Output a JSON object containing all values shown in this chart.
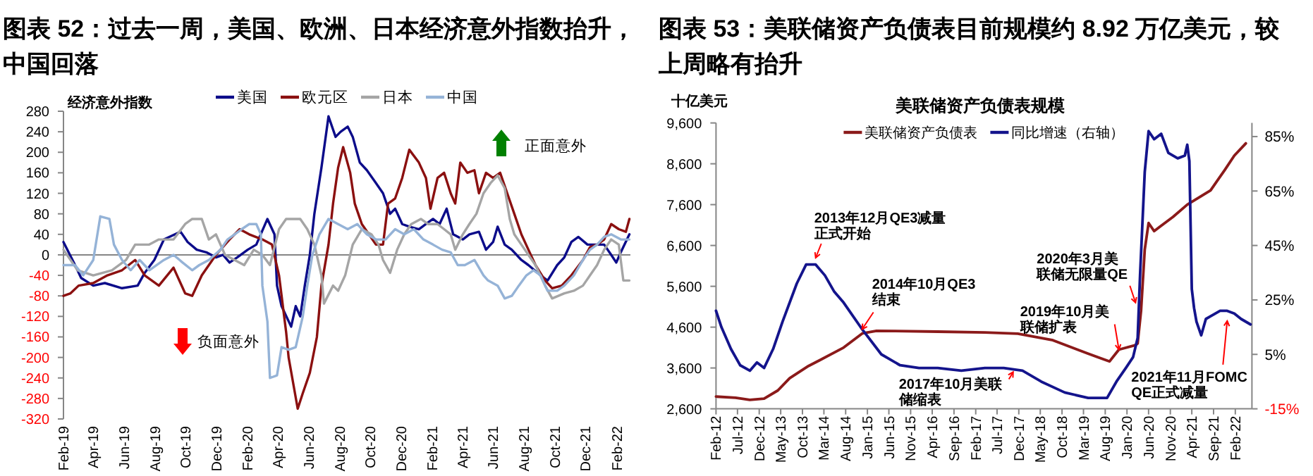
{
  "chart_data": [
    {
      "type": "line",
      "title": "图表 52：过去一周，美国、欧洲、日本经济意外指数抬升，中国回落",
      "ylabel": "经济意外指数",
      "legend": "top",
      "xlim": [
        "2019-02-01",
        "2022-02-28"
      ],
      "xticks": [
        {
          "value": "2019-02-01",
          "label": "Feb-19"
        },
        {
          "value": "2019-04-01",
          "label": "Apr-19"
        },
        {
          "value": "2019-06-01",
          "label": "Jun-19"
        },
        {
          "value": "2019-08-01",
          "label": "Aug-19"
        },
        {
          "value": "2019-10-01",
          "label": "Oct-19"
        },
        {
          "value": "2019-12-01",
          "label": "Dec-19"
        },
        {
          "value": "2020-02-01",
          "label": "Feb-20"
        },
        {
          "value": "2020-04-01",
          "label": "Apr-20"
        },
        {
          "value": "2020-06-01",
          "label": "Jun-20"
        },
        {
          "value": "2020-08-01",
          "label": "Aug-20"
        },
        {
          "value": "2020-10-01",
          "label": "Oct-20"
        },
        {
          "value": "2020-12-01",
          "label": "Dec-20"
        },
        {
          "value": "2021-02-01",
          "label": "Feb-21"
        },
        {
          "value": "2021-04-01",
          "label": "Apr-21"
        },
        {
          "value": "2021-06-01",
          "label": "Jun-21"
        },
        {
          "value": "2021-08-01",
          "label": "Aug-21"
        },
        {
          "value": "2021-10-01",
          "label": "Oct-21"
        },
        {
          "value": "2021-12-01",
          "label": "Dec-21"
        },
        {
          "value": "2022-02-01",
          "label": "Feb-22"
        }
      ],
      "ylim": [
        -320,
        280
      ],
      "yticks": [
        -320,
        -280,
        -240,
        -200,
        -160,
        -120,
        -80,
        -40,
        0,
        40,
        80,
        120,
        160,
        200,
        240,
        280
      ],
      "annotations": [
        "正面意外",
        "负面意外"
      ],
      "series": [
        {
          "name": "美国",
          "color": "#0c0c8a",
          "x": [
            "2019-02-01",
            "2019-02-24",
            "2019-03-08",
            "2019-04-01",
            "2019-04-24",
            "2019-05-28",
            "2019-06-28",
            "2019-07-12",
            "2019-07-31",
            "2019-08-19",
            "2019-09-21",
            "2019-10-05",
            "2019-10-23",
            "2019-11-11",
            "2019-11-30",
            "2019-12-14",
            "2019-12-27",
            "2020-01-11",
            "2020-02-01",
            "2020-02-18",
            "2020-03-11",
            "2020-03-25",
            "2020-03-30",
            "2020-04-08",
            "2020-04-27",
            "2020-05-06",
            "2020-05-15",
            "2020-05-24",
            "2020-06-03",
            "2020-06-12",
            "2020-06-26",
            "2020-07-10",
            "2020-07-24",
            "2020-08-03",
            "2020-08-17",
            "2020-08-27",
            "2020-09-10",
            "2020-09-24",
            "2020-10-12",
            "2020-10-26",
            "2020-11-09",
            "2020-11-19",
            "2020-12-03",
            "2020-12-17",
            "2021-01-05",
            "2021-01-19",
            "2021-02-02",
            "2021-02-15",
            "2021-03-01",
            "2021-03-14",
            "2021-04-02",
            "2021-04-15",
            "2021-05-04",
            "2021-05-18",
            "2021-06-01",
            "2021-06-10",
            "2021-06-24",
            "2021-07-08",
            "2021-07-27",
            "2021-08-10",
            "2021-09-03",
            "2021-09-17",
            "2021-10-06",
            "2021-10-20",
            "2021-11-03",
            "2021-11-17",
            "2021-12-05",
            "2021-12-24",
            "2022-01-07",
            "2022-01-21",
            "2022-01-31",
            "2022-02-09",
            "2022-02-26"
          ],
          "values": [
            25,
            -20,
            -45,
            -60,
            -55,
            -65,
            -60,
            -35,
            -10,
            30,
            45,
            25,
            10,
            5,
            -5,
            0,
            -15,
            -5,
            10,
            20,
            70,
            40,
            -60,
            -100,
            -140,
            -100,
            -120,
            -60,
            0,
            80,
            170,
            270,
            230,
            240,
            250,
            230,
            180,
            165,
            140,
            120,
            80,
            90,
            60,
            55,
            50,
            60,
            70,
            60,
            90,
            40,
            30,
            40,
            45,
            10,
            25,
            55,
            20,
            10,
            -10,
            -20,
            -40,
            -50,
            -20,
            -5,
            25,
            35,
            20,
            20,
            20,
            0,
            -15,
            5,
            40
          ]
        },
        {
          "name": "欧元区",
          "color": "#8b1010",
          "x": [
            "2019-02-01",
            "2019-02-15",
            "2019-03-03",
            "2019-04-01",
            "2019-04-29",
            "2019-05-28",
            "2019-06-23",
            "2019-07-12",
            "2019-08-09",
            "2019-09-07",
            "2019-09-30",
            "2019-10-14",
            "2019-11-02",
            "2019-11-30",
            "2019-12-27",
            "2020-01-16",
            "2020-02-04",
            "2020-03-01",
            "2020-03-20",
            "2020-04-03",
            "2020-04-17",
            "2020-04-22",
            "2020-05-10",
            "2020-05-20",
            "2020-06-03",
            "2020-06-17",
            "2020-06-26",
            "2020-07-10",
            "2020-07-19",
            "2020-07-29",
            "2020-08-08",
            "2020-08-22",
            "2020-08-31",
            "2020-09-14",
            "2020-09-28",
            "2020-10-12",
            "2020-10-26",
            "2020-11-05",
            "2020-11-19",
            "2020-12-03",
            "2020-12-17",
            "2021-01-05",
            "2021-01-19",
            "2021-01-28",
            "2021-02-11",
            "2021-02-24",
            "2021-03-09",
            "2021-03-18",
            "2021-03-28",
            "2021-04-11",
            "2021-04-25",
            "2021-05-04",
            "2021-05-18",
            "2021-06-01",
            "2021-06-15",
            "2021-06-29",
            "2021-07-13",
            "2021-07-27",
            "2021-08-10",
            "2021-08-24",
            "2021-09-12",
            "2021-09-26",
            "2021-10-15",
            "2021-11-03",
            "2021-11-26",
            "2021-12-10",
            "2021-12-24",
            "2022-01-07",
            "2022-01-21",
            "2022-02-05",
            "2022-02-19",
            "2022-02-26"
          ],
          "values": [
            -80,
            -75,
            -60,
            -55,
            -40,
            -30,
            -10,
            -40,
            -60,
            -25,
            -75,
            -80,
            -40,
            0,
            30,
            50,
            40,
            30,
            20,
            -40,
            -150,
            -200,
            -300,
            -270,
            -230,
            -160,
            -60,
            20,
            100,
            170,
            210,
            160,
            100,
            60,
            40,
            20,
            20,
            100,
            110,
            150,
            205,
            180,
            150,
            90,
            150,
            160,
            120,
            100,
            180,
            160,
            165,
            120,
            160,
            150,
            160,
            120,
            80,
            40,
            10,
            -20,
            -50,
            -65,
            -60,
            -40,
            -10,
            15,
            20,
            30,
            60,
            50,
            45,
            70
          ]
        },
        {
          "name": "日本",
          "color": "#a5a5a5",
          "x": [
            "2019-02-01",
            "2019-03-01",
            "2019-04-01",
            "2019-05-08",
            "2019-06-05",
            "2019-06-23",
            "2019-07-21",
            "2019-08-09",
            "2019-09-07",
            "2019-09-30",
            "2019-10-14",
            "2019-11-02",
            "2019-11-16",
            "2019-11-30",
            "2019-12-18",
            "2020-01-06",
            "2020-01-25",
            "2020-02-13",
            "2020-03-01",
            "2020-03-16",
            "2020-04-03",
            "2020-04-17",
            "2020-05-15",
            "2020-05-29",
            "2020-06-12",
            "2020-06-26",
            "2020-07-01",
            "2020-07-19",
            "2020-07-29",
            "2020-08-12",
            "2020-08-27",
            "2020-09-14",
            "2020-10-03",
            "2020-10-17",
            "2020-10-26",
            "2020-11-09",
            "2020-11-23",
            "2020-12-07",
            "2020-12-21",
            "2021-01-09",
            "2021-01-23",
            "2021-02-11",
            "2021-02-24",
            "2021-03-09",
            "2021-03-18",
            "2021-04-02",
            "2021-04-15",
            "2021-04-29",
            "2021-05-13",
            "2021-05-27",
            "2021-06-10",
            "2021-06-24",
            "2021-07-04",
            "2021-07-13",
            "2021-07-27",
            "2021-08-10",
            "2021-08-24",
            "2021-09-12",
            "2021-09-26",
            "2021-10-20",
            "2021-11-08",
            "2021-11-26",
            "2021-12-10",
            "2021-12-24",
            "2022-01-07",
            "2022-01-21",
            "2022-02-05",
            "2022-02-14",
            "2022-02-26"
          ],
          "values": [
            10,
            -30,
            -40,
            -30,
            -10,
            20,
            20,
            30,
            30,
            60,
            70,
            70,
            30,
            40,
            0,
            -10,
            -20,
            10,
            0,
            -20,
            50,
            70,
            70,
            50,
            20,
            -40,
            -95,
            -60,
            -70,
            -40,
            20,
            50,
            40,
            20,
            -10,
            -35,
            10,
            40,
            60,
            70,
            60,
            60,
            50,
            40,
            10,
            40,
            60,
            80,
            120,
            140,
            155,
            130,
            70,
            40,
            20,
            0,
            -20,
            -60,
            -85,
            -75,
            -70,
            -60,
            -40,
            -20,
            10,
            30,
            20,
            -50,
            -50
          ]
        },
        {
          "name": "中国",
          "color": "#95b3d7",
          "x": [
            "2019-02-01",
            "2019-02-24",
            "2019-03-12",
            "2019-04-01",
            "2019-04-15",
            "2019-05-03",
            "2019-05-12",
            "2019-05-28",
            "2019-06-14",
            "2019-07-02",
            "2019-07-21",
            "2019-08-19",
            "2019-09-07",
            "2019-09-25",
            "2019-10-14",
            "2019-10-28",
            "2019-11-16",
            "2019-12-09",
            "2019-12-23",
            "2020-01-06",
            "2020-01-20",
            "2020-02-04",
            "2020-02-18",
            "2020-02-27",
            "2020-03-01",
            "2020-03-11",
            "2020-03-16",
            "2020-03-30",
            "2020-04-08",
            "2020-04-22",
            "2020-05-06",
            "2020-05-20",
            "2020-05-29",
            "2020-06-08",
            "2020-06-22",
            "2020-07-10",
            "2020-07-29",
            "2020-08-17",
            "2020-09-05",
            "2020-09-24",
            "2020-10-12",
            "2020-10-31",
            "2020-11-19",
            "2020-12-07",
            "2020-12-26",
            "2021-01-14",
            "2021-02-02",
            "2021-02-20",
            "2021-03-09",
            "2021-03-23",
            "2021-04-06",
            "2021-04-25",
            "2021-05-13",
            "2021-05-22",
            "2021-06-10",
            "2021-06-24",
            "2021-07-08",
            "2021-07-22",
            "2021-08-06",
            "2021-08-20",
            "2021-09-03",
            "2021-09-17",
            "2021-10-06",
            "2021-10-20",
            "2021-11-08",
            "2021-11-26",
            "2021-12-10",
            "2021-12-24",
            "2022-01-07",
            "2022-01-21",
            "2022-02-09",
            "2022-02-26"
          ],
          "values": [
            -20,
            -20,
            -40,
            -10,
            75,
            70,
            20,
            -10,
            -30,
            -10,
            -30,
            -10,
            0,
            -15,
            -30,
            -20,
            -10,
            10,
            30,
            40,
            50,
            60,
            60,
            40,
            -60,
            -130,
            -240,
            -235,
            -180,
            -185,
            -180,
            -120,
            -60,
            0,
            40,
            70,
            60,
            50,
            60,
            40,
            30,
            30,
            50,
            40,
            50,
            30,
            20,
            10,
            5,
            -20,
            -20,
            -10,
            -40,
            -50,
            -60,
            -85,
            -80,
            -60,
            -40,
            -30,
            -40,
            -70,
            -70,
            -60,
            -40,
            -10,
            10,
            20,
            35,
            40,
            30,
            30
          ]
        }
      ]
    },
    {
      "type": "line",
      "title": "图表 53：美联储资产负债表目前规模约 8.92 万亿美元，较上周略有抬升",
      "subtitle": "美联储资产负债表规模",
      "ylabel": "十亿美元",
      "legend": "top",
      "xlim": [
        "2012-02-01",
        "2022-05-29"
      ],
      "xticks": [
        {
          "value": "2012-02-01",
          "label": "Feb-12"
        },
        {
          "value": "2012-07-01",
          "label": "Jul-12"
        },
        {
          "value": "2012-12-01",
          "label": "Dec-12"
        },
        {
          "value": "2013-05-01",
          "label": "May-13"
        },
        {
          "value": "2013-10-01",
          "label": "Oct-13"
        },
        {
          "value": "2014-03-01",
          "label": "Mar-14"
        },
        {
          "value": "2014-08-01",
          "label": "Aug-14"
        },
        {
          "value": "2015-01-01",
          "label": "Jan-15"
        },
        {
          "value": "2015-06-01",
          "label": "Jun-15"
        },
        {
          "value": "2015-11-01",
          "label": "Nov-15"
        },
        {
          "value": "2016-04-01",
          "label": "Apr-16"
        },
        {
          "value": "2016-09-01",
          "label": "Sep-16"
        },
        {
          "value": "2017-02-01",
          "label": "Feb-17"
        },
        {
          "value": "2017-07-01",
          "label": "Jul-17"
        },
        {
          "value": "2017-12-01",
          "label": "Dec-17"
        },
        {
          "value": "2018-05-01",
          "label": "May-18"
        },
        {
          "value": "2018-10-01",
          "label": "Oct-18"
        },
        {
          "value": "2019-03-01",
          "label": "Mar-19"
        },
        {
          "value": "2019-08-01",
          "label": "Aug-19"
        },
        {
          "value": "2020-01-01",
          "label": "Jan-20"
        },
        {
          "value": "2020-06-01",
          "label": "Jun-20"
        },
        {
          "value": "2020-11-01",
          "label": "Nov-20"
        },
        {
          "value": "2021-04-01",
          "label": "Apr-21"
        },
        {
          "value": "2021-09-01",
          "label": "Sep-21"
        },
        {
          "value": "2022-02-01",
          "label": "Feb-22"
        }
      ],
      "ylim": [
        2600,
        9600
      ],
      "yticks": [
        {
          "value": 2600,
          "label": "2,600"
        },
        {
          "value": 3600,
          "label": "3,600"
        },
        {
          "value": 4600,
          "label": "4,600"
        },
        {
          "value": 5600,
          "label": "5,600"
        },
        {
          "value": 6600,
          "label": "6,600"
        },
        {
          "value": 7600,
          "label": "7,600"
        },
        {
          "value": 8600,
          "label": "8,600"
        },
        {
          "value": 9600,
          "label": "9,600"
        }
      ],
      "y2lim": [
        -15,
        90
      ],
      "y2ticks": [
        {
          "value": -15,
          "label": "-15%"
        },
        {
          "value": 5,
          "label": "5%"
        },
        {
          "value": 25,
          "label": "25%"
        },
        {
          "value": 45,
          "label": "45%"
        },
        {
          "value": 65,
          "label": "65%"
        },
        {
          "value": 85,
          "label": "85%"
        }
      ],
      "annotations": [
        {
          "text": "2013年12月QE3减量正式开始",
          "x": "2014-01-02",
          "y": 6300
        },
        {
          "text": "2014年10月QE3结束",
          "x": "2014-11-25",
          "y": 4550
        },
        {
          "text": "2017年10月美联储缩表",
          "x": "2017-10-22",
          "y": 3500
        },
        {
          "text": "2019年10月美联储扩表",
          "x": "2019-11-05",
          "y": 4050
        },
        {
          "text": "2020年3月美联储无限量QE",
          "x": "2020-03-01",
          "y": 5200
        },
        {
          "text": "2021年11月FOMC QE正式减量",
          "x": "2021-12-06",
          "y": 4750
        }
      ],
      "series": [
        {
          "name": "美联储资产负债表",
          "color": "#8b1a1a",
          "x": [
            "2012-02-01",
            "2012-06-18",
            "2012-09-26",
            "2013-01-04",
            "2013-04-11",
            "2013-07-03",
            "2013-11-13",
            "2014-02-05",
            "2014-07-18",
            "2014-11-28",
            "2015-03-06",
            "2016-05-10",
            "2017-04-06",
            "2017-11-24",
            "2018-07-29",
            "2019-04-03",
            "2019-08-31",
            "2019-11-05",
            "2020-03-01",
            "2020-03-16",
            "2020-04-09",
            "2020-05-05",
            "2020-06-01",
            "2020-07-10",
            "2020-08-16",
            "2020-11-20",
            "2021-02-28",
            "2021-08-11",
            "2021-11-19",
            "2022-01-25",
            "2022-04-16"
          ],
          "values": [
            2900,
            2870,
            2820,
            2850,
            3050,
            3350,
            3650,
            3800,
            4100,
            4450,
            4510,
            4490,
            4470,
            4440,
            4280,
            3950,
            3760,
            4050,
            4160,
            4200,
            5000,
            6500,
            7150,
            6950,
            7050,
            7300,
            7600,
            7950,
            8450,
            8800,
            9100
          ]
        },
        {
          "name": "同比增速（右轴）",
          "color": "#14148c",
          "axis": "y2",
          "x": [
            "2012-02-01",
            "2012-03-10",
            "2012-05-16",
            "2012-07-20",
            "2012-09-26",
            "2012-11-15",
            "2013-01-04",
            "2013-03-09",
            "2013-05-14",
            "2013-08-22",
            "2013-10-27",
            "2014-01-02",
            "2014-03-08",
            "2014-05-13",
            "2014-07-18",
            "2014-11-28",
            "2015-04-09",
            "2015-08-19",
            "2015-12-30",
            "2016-05-10",
            "2016-10-23",
            "2017-04-06",
            "2017-08-17",
            "2017-12-27",
            "2018-05-08",
            "2018-10-20",
            "2019-04-03",
            "2019-08-14",
            "2019-10-19",
            "2019-12-24",
            "2020-02-13",
            "2020-03-16",
            "2020-04-02",
            "2020-05-05",
            "2020-06-01",
            "2020-07-10",
            "2020-08-29",
            "2020-10-18",
            "2020-12-23",
            "2021-02-11",
            "2021-02-28",
            "2021-03-15",
            "2021-04-01",
            "2021-04-17",
            "2021-05-04",
            "2021-06-06",
            "2021-07-09",
            "2021-08-11",
            "2021-10-17",
            "2021-12-06",
            "2022-01-25",
            "2022-03-14",
            "2022-05-19"
          ],
          "values": [
            21,
            15,
            7,
            1,
            -1,
            2,
            0,
            7,
            17,
            31,
            38,
            38,
            34,
            28,
            24,
            14,
            5,
            1,
            0,
            0,
            -1,
            0,
            0,
            -1,
            -5,
            -9,
            -11,
            -11,
            -5,
            0,
            4,
            11,
            34,
            72,
            87,
            84,
            86,
            79,
            77,
            78,
            82,
            76,
            29,
            22,
            17,
            12,
            18,
            19,
            21,
            21,
            20,
            18,
            16
          ]
        }
      ]
    }
  ]
}
